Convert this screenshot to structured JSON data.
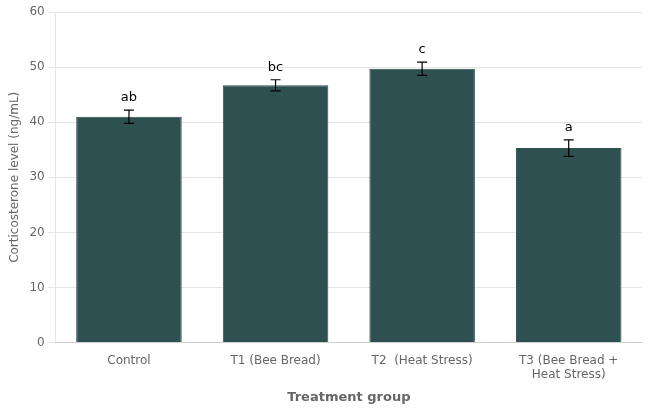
{
  "chart_data": {
    "type": "bar",
    "categories": [
      "Control",
      "T1 (Bee Bread)",
      "T2  (Heat Stress)",
      "T3 (Bee Bread +\nHeat Stress)"
    ],
    "values": [
      41.0,
      46.7,
      49.7,
      35.3
    ],
    "errors": [
      1.2,
      1.0,
      1.2,
      1.5
    ],
    "annotations": [
      "ab",
      "bc",
      "c",
      "a"
    ],
    "color": "#2e5050",
    "xlabel": "Treatment group",
    "ylabel": "Corticosterone level (ng/mL)",
    "ylim": [
      0,
      60
    ],
    "yticks": [
      0,
      10,
      20,
      30,
      40,
      50,
      60
    ],
    "grid": true
  }
}
